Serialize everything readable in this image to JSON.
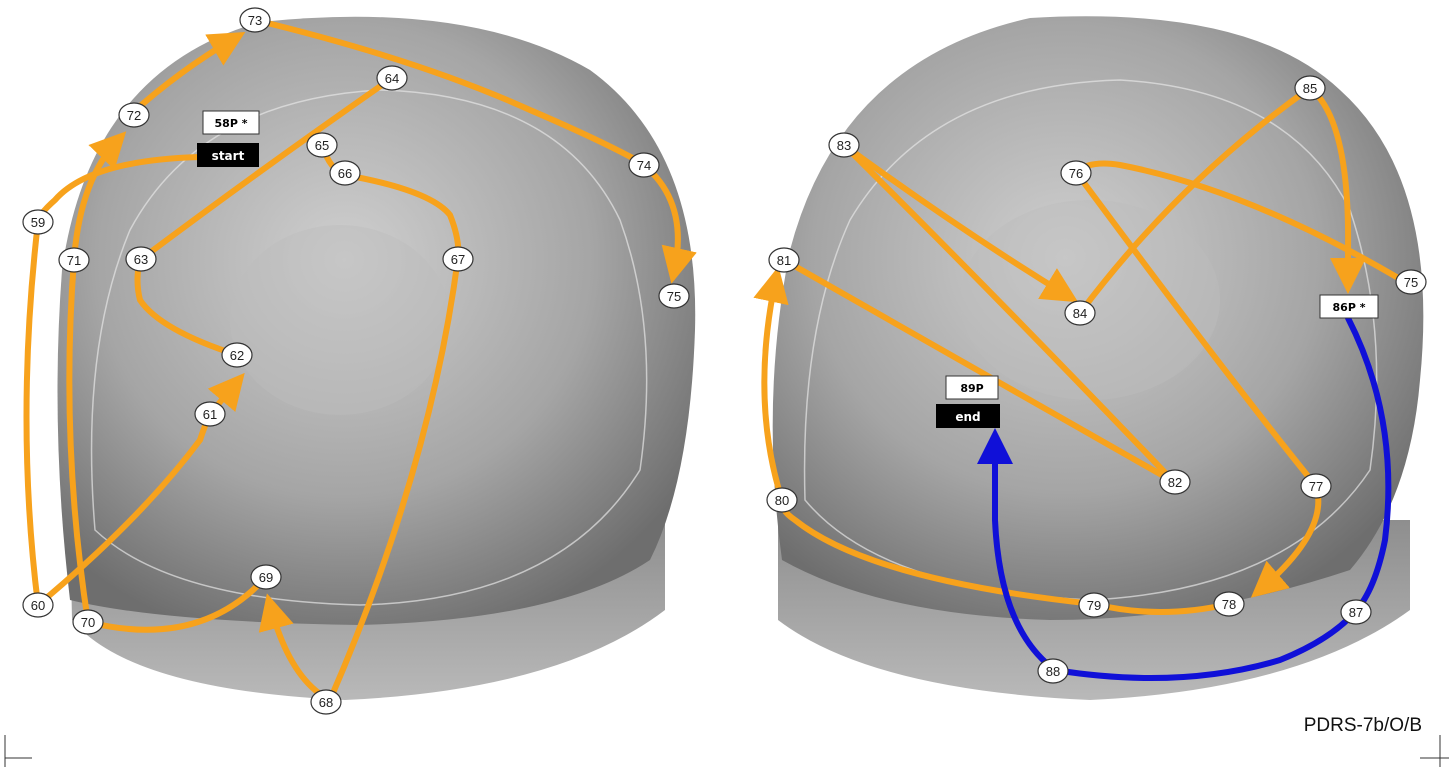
{
  "left_panel": {
    "nodes": [
      "58P *",
      "start",
      "59",
      "60",
      "61",
      "62",
      "63",
      "64",
      "65",
      "66",
      "67",
      "68",
      "69",
      "70",
      "71",
      "72",
      "73",
      "74",
      "75"
    ]
  },
  "right_panel": {
    "nodes": [
      "75",
      "76",
      "77",
      "78",
      "79",
      "80",
      "81",
      "82",
      "83",
      "84",
      "85",
      "86P *",
      "87",
      "88",
      "89P",
      "end"
    ]
  },
  "doc_ref": "PDRS-7b/O/B",
  "colors": {
    "path_orange": "#f7a21c",
    "path_blue": "#1010d8",
    "dome_light": "#c8c8c8",
    "dome_dark": "#7a7a7a"
  }
}
